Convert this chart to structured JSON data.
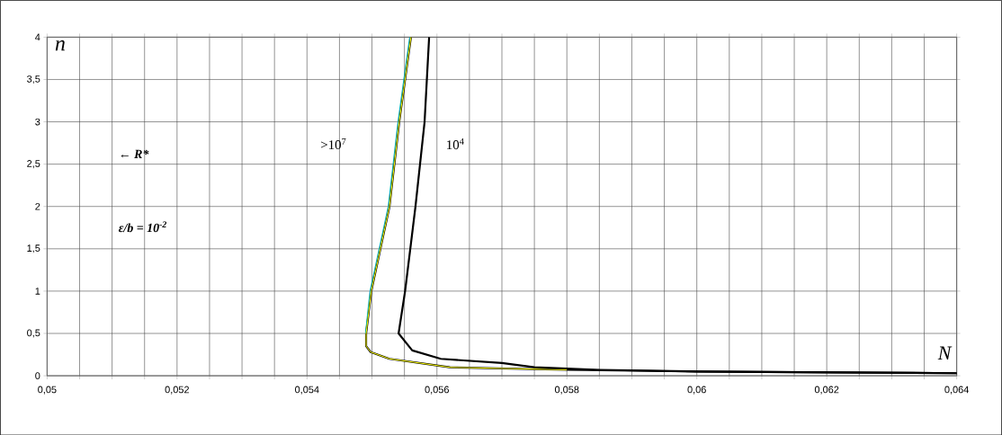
{
  "chart_data": {
    "type": "line",
    "xlabel": "N",
    "ylabel": "n",
    "xlim": [
      0.05,
      0.064
    ],
    "ylim": [
      0,
      4
    ],
    "xticks": [
      {
        "value": 0.05,
        "label": "0,05"
      },
      {
        "value": 0.0505,
        "label": null
      },
      {
        "value": 0.051,
        "label": null
      },
      {
        "value": 0.0515,
        "label": null
      },
      {
        "value": 0.052,
        "label": "0,052"
      },
      {
        "value": 0.0525,
        "label": null
      },
      {
        "value": 0.053,
        "label": null
      },
      {
        "value": 0.0535,
        "label": null
      },
      {
        "value": 0.054,
        "label": "0,054"
      },
      {
        "value": 0.0545,
        "label": null
      },
      {
        "value": 0.055,
        "label": null
      },
      {
        "value": 0.0555,
        "label": null
      },
      {
        "value": 0.056,
        "label": "0,056"
      },
      {
        "value": 0.0565,
        "label": null
      },
      {
        "value": 0.057,
        "label": null
      },
      {
        "value": 0.0575,
        "label": null
      },
      {
        "value": 0.058,
        "label": "0,058"
      },
      {
        "value": 0.0585,
        "label": null
      },
      {
        "value": 0.059,
        "label": null
      },
      {
        "value": 0.0595,
        "label": null
      },
      {
        "value": 0.06,
        "label": "0,06"
      },
      {
        "value": 0.0605,
        "label": null
      },
      {
        "value": 0.061,
        "label": null
      },
      {
        "value": 0.0615,
        "label": null
      },
      {
        "value": 0.062,
        "label": "0,062"
      },
      {
        "value": 0.0625,
        "label": null
      },
      {
        "value": 0.063,
        "label": null
      },
      {
        "value": 0.0635,
        "label": null
      },
      {
        "value": 0.064,
        "label": "0,064"
      }
    ],
    "yticks": [
      0,
      {
        "value": 0.5,
        "label": "0,5"
      },
      1,
      {
        "value": 1.5,
        "label": "1,5"
      },
      2,
      {
        "value": 2.5,
        "label": "2,5"
      },
      3,
      {
        "value": 3.5,
        "label": "3,5"
      },
      4
    ],
    "grid": true,
    "series": [
      {
        "color": "#000000",
        "x": [
          0.0556,
          0.05542,
          0.05527,
          0.05499,
          0.05491,
          0.05491,
          0.05498,
          0.05527,
          0.0562,
          0.058,
          0.06,
          0.064
        ],
        "values": [
          4,
          3,
          2,
          1,
          0.5,
          0.35,
          0.28,
          0.2,
          0.1,
          0.07,
          0.05,
          0.03
        ]
      },
      {
        "color": "#00b0b0",
        "x": [
          0.05558,
          0.0554,
          0.05525,
          0.05497,
          0.0549
        ],
        "values": [
          4,
          3,
          2,
          1,
          0.5
        ]
      },
      {
        "color": "#ffff00",
        "x": [
          0.0556,
          0.05542,
          0.05527,
          0.05499,
          0.05491,
          0.05491,
          0.05498,
          0.05527,
          0.0562,
          0.058
        ],
        "values": [
          4,
          3,
          2,
          1,
          0.5,
          0.35,
          0.28,
          0.2,
          0.1,
          0.07
        ]
      },
      {
        "color": "#000000",
        "x": [
          0.05588,
          0.05581,
          0.05567,
          0.05551,
          0.05541,
          0.05562,
          0.05606,
          0.057,
          0.0575,
          0.0585,
          0.06,
          0.062,
          0.064
        ],
        "values": [
          4,
          3,
          2,
          1,
          0.5,
          0.3,
          0.2,
          0.15,
          0.1,
          0.07,
          0.05,
          0.04,
          0.03
        ]
      }
    ],
    "annotations": [
      ">10$^{7}$",
      "10$^{4}$",
      "← R*",
      "ε/b = 10$^{-2}$"
    ]
  }
}
